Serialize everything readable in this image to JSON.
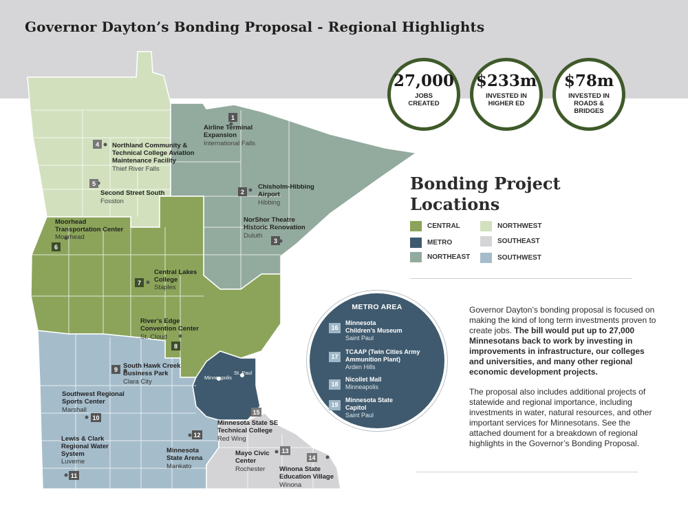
{
  "title": "Governor Dayton’s Bonding Proposal - Regional Highlights",
  "stats": [
    {
      "value": "27,000",
      "label": "JOBS\nCREATED"
    },
    {
      "value": "$233m",
      "label": "INVESTED IN\nHIGHER ED"
    },
    {
      "value": "$78m",
      "label": "INVESTED IN\nROADS & BRIDGES"
    }
  ],
  "legend": {
    "title": "Bonding Project\nLocations",
    "items": [
      {
        "name": "CENTRAL",
        "color": "#8ba45a"
      },
      {
        "name": "METRO",
        "color": "#3f5a6e"
      },
      {
        "name": "NORTHEAST",
        "color": "#93ab9e"
      },
      {
        "name": "NORTHWEST",
        "color": "#d2e0bd"
      },
      {
        "name": "SOUTHEAST",
        "color": "#d4d4d6"
      },
      {
        "name": "SOUTHWEST",
        "color": "#a5bccb"
      }
    ]
  },
  "projects": [
    {
      "num": "1",
      "name": "Airline Terminal\nExpansion",
      "city": "International Falls"
    },
    {
      "num": "2",
      "name": "Chisholm-Hibbing\nAirport",
      "city": "Hibbing"
    },
    {
      "num": "3",
      "name": "NorShor Theatre\nHistoric Renovation",
      "city": "Duluth"
    },
    {
      "num": "4",
      "name": "Northland Community &\nTechnical College Aviation\nMaintenance Facility",
      "city": "Thief River Falls"
    },
    {
      "num": "5",
      "name": "Second Street South",
      "city": "Fosston"
    },
    {
      "num": "6",
      "name": "Moorhead\nTransportation Center",
      "city": "Moorhead"
    },
    {
      "num": "7",
      "name": "Central Lakes\nCollege",
      "city": "Staples"
    },
    {
      "num": "8",
      "name": "River’s Edge\nConvention Center",
      "city": "St. Cloud"
    },
    {
      "num": "9",
      "name": "South Hawk Creek\nBusiness Park",
      "city": "Clara City"
    },
    {
      "num": "10",
      "name": "Southwest Regional\nSports Center",
      "city": "Marshall"
    },
    {
      "num": "11",
      "name": "Lewis & Clark\nRegional Water\nSystem",
      "city": "Luverne"
    },
    {
      "num": "12",
      "name": "Minnesota\nState Arena",
      "city": "Mankato"
    },
    {
      "num": "13",
      "name": "Mayo Civic\nCenter",
      "city": "Rochester"
    },
    {
      "num": "14",
      "name": "Winona State\nEducation Village",
      "city": "Winona"
    },
    {
      "num": "15",
      "name": "Minnesota State SE\nTechnical College",
      "city": "Red Wing"
    }
  ],
  "map_cities": {
    "minneapolis": "Minneapolis",
    "stpaul": "St. Paul"
  },
  "metro": {
    "title": "METRO AREA",
    "items": [
      {
        "num": "16",
        "name": "Minnesota\nChildren’s Museum",
        "city": "Saint Paul"
      },
      {
        "num": "17",
        "name": "TCAAP (Twin Cities Army\nAmmunition Plant)",
        "city": "Arden Hills"
      },
      {
        "num": "18",
        "name": "Nicollet Mall",
        "city": "Minneapolis"
      },
      {
        "num": "19",
        "name": "Minnesota State\nCapitol",
        "city": "Saint Paul"
      }
    ]
  },
  "description": {
    "p1_plain": "Governor Dayton’s bonding proposal is focused on making the kind of long term investments proven to create jobs. ",
    "p1_bold": "The bill would put up to 27,000 Minnesotans back to work by investing in improvements in infrastructure, our colleges and universities, and many other regional economic development projects.",
    "p2": "The proposal also includes additional projects of statewide and regional importance, including investments in water, natural resources, and other important services for Minnesotans. See the attached doument for a breakdown of regional highlights in the Governor’s Bonding Proposal."
  }
}
